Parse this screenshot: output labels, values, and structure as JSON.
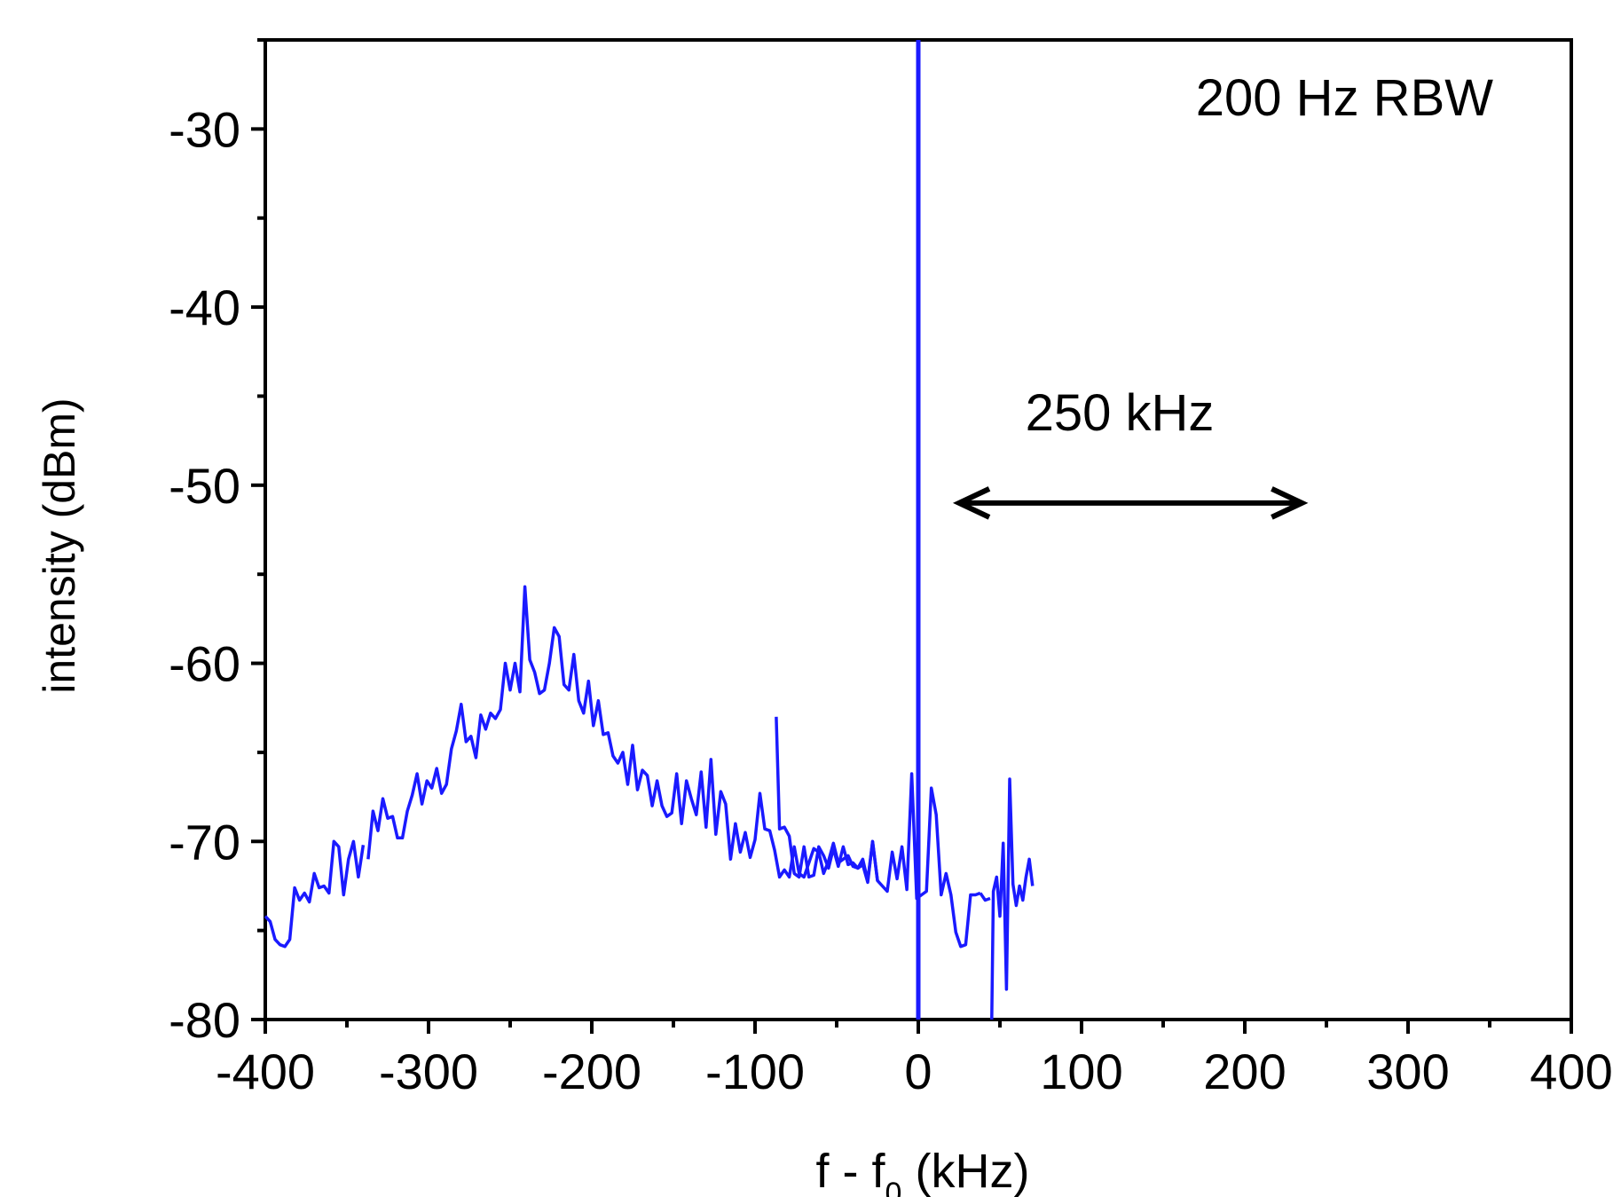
{
  "chart_data": {
    "type": "line",
    "xlabel": "f - f",
    "xlabel_sub": "0",
    "xlabel_unit": " (kHz)",
    "ylabel": "intensity (dBm)",
    "xlim": [
      -400,
      400
    ],
    "ylim": [
      -80,
      -25
    ],
    "x_ticks": [
      -400,
      -300,
      -200,
      -100,
      0,
      100,
      200,
      300,
      400
    ],
    "x_tick_labels": [
      "-400",
      "-300",
      "-200",
      "-100",
      "0",
      "100",
      "200",
      "300",
      "400"
    ],
    "y_ticks": [
      -80,
      -70,
      -60,
      -50,
      -40,
      -30
    ],
    "y_tick_labels": [
      "-80",
      "-70",
      "-60",
      "-50",
      "-40",
      "-30"
    ],
    "grid": false,
    "line_color": "#1a1aff",
    "annotations": {
      "rbw": "200 Hz RBW",
      "spacing": "250 kHz",
      "arrow_x": [
        25,
        235
      ],
      "arrow_y": -51
    },
    "series": [
      {
        "segments": [
          [
            [
              -400,
              -74.2
            ],
            [
              -397,
              -74.5
            ],
            [
              -394,
              -75.5
            ],
            [
              -391,
              -75.8
            ],
            [
              -388,
              -75.9
            ],
            [
              -385,
              -75.5
            ],
            [
              -382,
              -72.6
            ],
            [
              -379,
              -73.3
            ],
            [
              -376,
              -72.9
            ],
            [
              -373,
              -73.4
            ],
            [
              -370,
              -71.8
            ],
            [
              -367,
              -72.6
            ],
            [
              -364,
              -72.5
            ],
            [
              -361,
              -72.9
            ],
            [
              -358,
              -70.0
            ],
            [
              -355,
              -70.3
            ],
            [
              -352,
              -73.0
            ],
            [
              -349,
              -71.0
            ],
            [
              -346,
              -70.0
            ],
            [
              -343,
              -72.0
            ],
            [
              -340,
              -70.2
            ]
          ],
          [
            [
              -337,
              -71.0
            ],
            [
              -334,
              -68.3
            ],
            [
              -331,
              -69.4
            ],
            [
              -328,
              -67.6
            ],
            [
              -325,
              -68.7
            ],
            [
              -322,
              -68.6
            ],
            [
              -319,
              -69.8
            ],
            [
              -316,
              -69.8
            ],
            [
              -313,
              -68.3
            ],
            [
              -310,
              -67.4
            ],
            [
              -307,
              -66.2
            ],
            [
              -304,
              -67.9
            ],
            [
              -301,
              -66.6
            ],
            [
              -298,
              -67.0
            ],
            [
              -295,
              -65.9
            ],
            [
              -292,
              -67.3
            ],
            [
              -289,
              -66.8
            ],
            [
              -286,
              -64.8
            ],
            [
              -283,
              -63.8
            ],
            [
              -280,
              -62.3
            ],
            [
              -277,
              -64.4
            ],
            [
              -274,
              -64.1
            ],
            [
              -271,
              -65.3
            ],
            [
              -268,
              -62.9
            ],
            [
              -265,
              -63.7
            ],
            [
              -262,
              -62.8
            ],
            [
              -259,
              -63.1
            ],
            [
              -256,
              -62.6
            ],
            [
              -253,
              -60.0
            ],
            [
              -250,
              -61.5
            ],
            [
              -247,
              -60.0
            ],
            [
              -244,
              -61.6
            ],
            [
              -241,
              -55.7
            ],
            [
              -238,
              -59.8
            ],
            [
              -235,
              -60.5
            ],
            [
              -232,
              -61.7
            ],
            [
              -229,
              -61.5
            ],
            [
              -226,
              -60.0
            ],
            [
              -223,
              -58.0
            ],
            [
              -220,
              -58.5
            ],
            [
              -217,
              -61.2
            ],
            [
              -214,
              -61.5
            ],
            [
              -211,
              -59.5
            ],
            [
              -208,
              -62.1
            ],
            [
              -205,
              -62.8
            ],
            [
              -202,
              -61.0
            ],
            [
              -199,
              -63.5
            ],
            [
              -196,
              -62.1
            ],
            [
              -193,
              -64.0
            ],
            [
              -190,
              -63.9
            ],
            [
              -187,
              -65.2
            ],
            [
              -184,
              -65.6
            ],
            [
              -181,
              -65.0
            ],
            [
              -178,
              -66.8
            ],
            [
              -175,
              -64.6
            ],
            [
              -172,
              -67.1
            ],
            [
              -169,
              -66.0
            ],
            [
              -166,
              -66.3
            ],
            [
              -163,
              -68.0
            ],
            [
              -160,
              -66.6
            ],
            [
              -157,
              -68.0
            ],
            [
              -154,
              -68.6
            ],
            [
              -151,
              -68.4
            ],
            [
              -148,
              -66.2
            ],
            [
              -145,
              -69.0
            ],
            [
              -142,
              -66.6
            ],
            [
              -139,
              -67.6
            ],
            [
              -136,
              -68.5
            ],
            [
              -133,
              -66.1
            ],
            [
              -130,
              -69.2
            ],
            [
              -127,
              -65.4
            ],
            [
              -124,
              -69.6
            ],
            [
              -121,
              -67.2
            ],
            [
              -118,
              -67.9
            ],
            [
              -115,
              -71.0
            ],
            [
              -112,
              -69.0
            ],
            [
              -109,
              -70.6
            ],
            [
              -106,
              -69.5
            ],
            [
              -103,
              -70.9
            ],
            [
              -100,
              -69.9
            ],
            [
              -97,
              -67.3
            ],
            [
              -94,
              -69.3
            ],
            [
              -91,
              -69.4
            ],
            [
              -88,
              -70.5
            ],
            [
              -85,
              -72.0
            ],
            [
              -82,
              -71.6
            ],
            [
              -79,
              -72.0
            ],
            [
              -76,
              -70.3
            ],
            [
              -73,
              -71.8
            ],
            [
              -70,
              -72.0
            ],
            [
              -67,
              -71.2
            ],
            [
              -64,
              -70.4
            ],
            [
              -61,
              -70.6
            ],
            [
              -58,
              -71.8
            ],
            [
              -55,
              -71.1
            ],
            [
              -52,
              -70.1
            ],
            [
              -49,
              -71.2
            ],
            [
              -46,
              -71.0
            ],
            [
              -43,
              -70.8
            ],
            [
              -40,
              -71.4
            ],
            [
              -37,
              -71.5
            ],
            [
              -34,
              -71.3
            ],
            [
              -31,
              -72.3
            ],
            [
              -28,
              -70.0
            ],
            [
              -25,
              -72.2
            ]
          ],
          [
            [
              -87,
              -63.0
            ],
            [
              -85,
              -69.3
            ],
            [
              -82,
              -69.2
            ],
            [
              -79,
              -69.7
            ],
            [
              -76,
              -71.8
            ],
            [
              -73,
              -72.0
            ],
            [
              -70,
              -70.3
            ],
            [
              -67,
              -72.0
            ],
            [
              -64,
              -71.9
            ],
            [
              -61,
              -70.3
            ],
            [
              -58,
              -70.8
            ],
            [
              -55,
              -71.5
            ],
            [
              -52,
              -70.4
            ],
            [
              -49,
              -71.4
            ],
            [
              -46,
              -70.3
            ],
            [
              -43,
              -71.3
            ],
            [
              -40,
              -71.2
            ],
            [
              -37,
              -71.5
            ],
            [
              -34,
              -71.0
            ],
            [
              -31,
              -72.2
            ],
            [
              -28,
              -70.0
            ],
            [
              -25,
              -72.2
            ],
            [
              -22,
              -72.5
            ],
            [
              -19,
              -72.8
            ],
            [
              -16,
              -70.6
            ],
            [
              -13,
              -72.1
            ],
            [
              -10,
              -70.3
            ],
            [
              -7,
              -72.7
            ],
            [
              -4,
              -66.2
            ],
            [
              -1,
              -73.2
            ],
            [
              2,
              -73.0
            ],
            [
              5,
              -72.8
            ],
            [
              8,
              -67.0
            ],
            [
              11,
              -68.5
            ],
            [
              14,
              -73.0
            ],
            [
              17,
              -71.8
            ],
            [
              20,
              -73.0
            ],
            [
              23,
              -75.1
            ],
            [
              26,
              -75.9
            ],
            [
              29,
              -75.8
            ],
            [
              32,
              -73.0
            ],
            [
              35,
              -73.0
            ],
            [
              38,
              -72.9
            ]
          ],
          [
            [
              38,
              -72.9
            ],
            [
              41,
              -73.3
            ],
            [
              44,
              -73.2
            ]
          ],
          [
            [
              45,
              -80.0
            ],
            [
              46,
              -72.8
            ],
            [
              48,
              -72.0
            ],
            [
              50,
              -74.2
            ],
            [
              52,
              -70.1
            ],
            [
              54,
              -78.3
            ],
            [
              56,
              -66.5
            ],
            [
              58,
              -72.4
            ],
            [
              60,
              -73.6
            ],
            [
              62,
              -72.5
            ],
            [
              64,
              -73.3
            ],
            [
              66,
              -72.0
            ],
            [
              68,
              -71.0
            ],
            [
              70,
              -72.5
            ]
          ]
        ]
      }
    ]
  }
}
